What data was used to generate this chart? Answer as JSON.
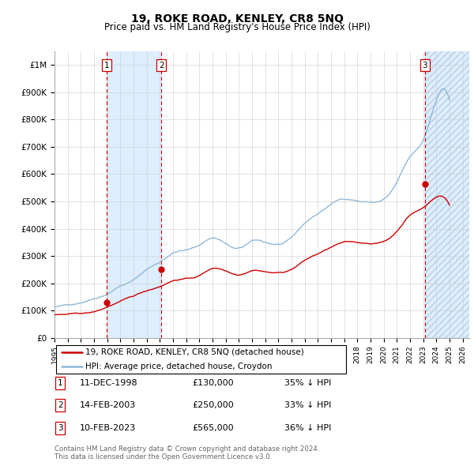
{
  "title": "19, ROKE ROAD, KENLEY, CR8 5NQ",
  "subtitle": "Price paid vs. HM Land Registry's House Price Index (HPI)",
  "footer_line1": "Contains HM Land Registry data © Crown copyright and database right 2024.",
  "footer_line2": "This data is licensed under the Open Government Licence v3.0.",
  "legend_label_red": "19, ROKE ROAD, KENLEY, CR8 5NQ (detached house)",
  "legend_label_blue": "HPI: Average price, detached house, Croydon",
  "sale_points": [
    {
      "label": "1",
      "price": 130000,
      "x": 1998.94
    },
    {
      "label": "2",
      "price": 250000,
      "x": 2003.12
    },
    {
      "label": "3",
      "price": 565000,
      "x": 2023.12
    }
  ],
  "sale_info": [
    {
      "num": "1",
      "date": "11-DEC-1998",
      "price": "£130,000",
      "pct": "35% ↓ HPI"
    },
    {
      "num": "2",
      "date": "14-FEB-2003",
      "price": "£250,000",
      "pct": "33% ↓ HPI"
    },
    {
      "num": "3",
      "date": "10-FEB-2023",
      "price": "£565,000",
      "pct": "36% ↓ HPI"
    }
  ],
  "hpi_color": "#90b8d8",
  "price_color": "#cc0000",
  "vline_color": "#cc0000",
  "shade_color": "#ddeeff",
  "ylim_max": 1050000,
  "ylim_min": 0,
  "xlim_min": 1995.0,
  "xlim_max": 2026.5,
  "hpi_annual": [
    [
      1995,
      113000
    ],
    [
      1996,
      119000
    ],
    [
      1997,
      131000
    ],
    [
      1998,
      148000
    ],
    [
      1999,
      168000
    ],
    [
      2000,
      198000
    ],
    [
      2001,
      219000
    ],
    [
      2002,
      258000
    ],
    [
      2003,
      285000
    ],
    [
      2004,
      320000
    ],
    [
      2005,
      330000
    ],
    [
      2006,
      348000
    ],
    [
      2007,
      375000
    ],
    [
      2008,
      355000
    ],
    [
      2009,
      335000
    ],
    [
      2010,
      360000
    ],
    [
      2011,
      355000
    ],
    [
      2012,
      348000
    ],
    [
      2013,
      368000
    ],
    [
      2014,
      420000
    ],
    [
      2015,
      455000
    ],
    [
      2016,
      490000
    ],
    [
      2017,
      510000
    ],
    [
      2018,
      505000
    ],
    [
      2019,
      500000
    ],
    [
      2020,
      510000
    ],
    [
      2021,
      570000
    ],
    [
      2022,
      660000
    ],
    [
      2023,
      720000
    ],
    [
      2024,
      870000
    ],
    [
      2025,
      870000
    ]
  ],
  "price_annual": [
    [
      1995,
      84000
    ],
    [
      1996,
      85000
    ],
    [
      1997,
      87000
    ],
    [
      1998,
      92000
    ],
    [
      1999,
      110000
    ],
    [
      2000,
      130000
    ],
    [
      2001,
      148000
    ],
    [
      2002,
      168000
    ],
    [
      2003,
      185000
    ],
    [
      2004,
      207000
    ],
    [
      2005,
      215000
    ],
    [
      2006,
      226000
    ],
    [
      2007,
      252000
    ],
    [
      2008,
      245000
    ],
    [
      2009,
      232000
    ],
    [
      2010,
      250000
    ],
    [
      2011,
      247000
    ],
    [
      2012,
      243000
    ],
    [
      2013,
      256000
    ],
    [
      2014,
      288000
    ],
    [
      2015,
      312000
    ],
    [
      2016,
      335000
    ],
    [
      2017,
      352000
    ],
    [
      2018,
      350000
    ],
    [
      2019,
      348000
    ],
    [
      2020,
      355000
    ],
    [
      2021,
      393000
    ],
    [
      2022,
      453000
    ],
    [
      2023,
      480000
    ],
    [
      2024,
      520000
    ],
    [
      2025,
      490000
    ]
  ]
}
